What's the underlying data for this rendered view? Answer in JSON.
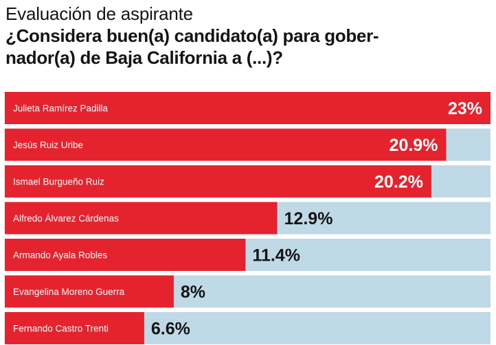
{
  "title": "Evaluación de aspirante",
  "question_line1": "¿Considera buen(a) candidato(a) para gober-",
  "question_line2": "nador(a) de Baja California a (...)?",
  "colors": {
    "bar": "#e4232e",
    "track": "#bfd9e6",
    "value_on_bar": "#ffffff",
    "value_off_bar": "#141414"
  },
  "chart_data": {
    "type": "bar",
    "orientation": "horizontal",
    "categories": [
      "Julieta Ramírez Padilla",
      "Jesús Ruiz Uribe",
      "Ismael Burgueño Ruiz",
      "Alfredo Álvarez Cárdenas",
      "Armando Ayala Robles",
      "Evangelina Moreno Guerra",
      "Fernando Castro Trenti"
    ],
    "values": [
      23,
      20.9,
      20.2,
      12.9,
      11.4,
      8,
      6.6
    ],
    "value_labels": [
      "23%",
      "20.9%",
      "20.2%",
      "12.9%",
      "11.4%",
      "8%",
      "6.6%"
    ],
    "xlim": [
      0,
      23
    ],
    "unit": "%"
  }
}
